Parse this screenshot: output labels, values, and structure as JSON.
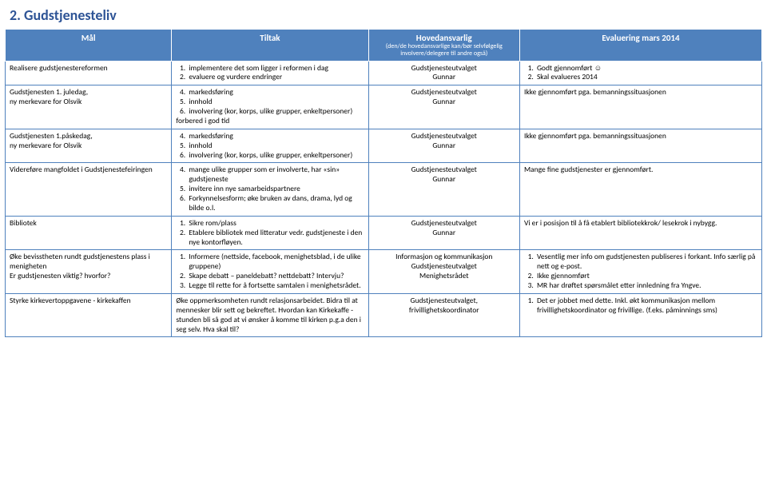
{
  "heading": "2. Gudstjenesteliv",
  "columns": {
    "mal": "Mål",
    "tiltak": "Tiltak",
    "hoved": "Hovedansvarlig",
    "hoved_sub": "(den/de hovedansvarlige kan/bør selvfølgelig involvere/delegere til andre også)",
    "eval": "Evaluering mars 2014"
  },
  "rows": [
    {
      "mal": "Realisere gudstjenestereformen",
      "tiltak_items": [
        "implementere det som ligger i reformen i dag",
        "evaluere og vurdere endringer"
      ],
      "hoved": "Gudstjenesteutvalget\nGunnar",
      "eval_items": [
        "Godt gjennomført ☺",
        "Skal evalueres 2014"
      ]
    },
    {
      "mal": "Gudstjenesten 1. juledag,\nny merkevare for Olsvik",
      "tiltak_items": [
        "markedsføring",
        "innhold",
        "involvering (kor, korps, ulike grupper, enkeltpersoner)"
      ],
      "tiltak_start": 4,
      "tiltak_after": "forbered i god tid",
      "hoved": "Gudstjenesteutvalget\nGunnar",
      "eval_plain": "Ikke gjennomført pga. bemanningssituasjonen"
    },
    {
      "mal": "Gudstjenesten 1.påskedag,\nny merkevare for Olsvik",
      "tiltak_items": [
        "markedsføring",
        "innhold",
        "involvering (kor, korps, ulike grupper, enkeltpersoner)"
      ],
      "tiltak_start": 4,
      "hoved": "Gudstjenesteutvalget\nGunnar",
      "eval_plain": "Ikke gjennomført pga. bemanningssituasjonen"
    },
    {
      "mal": "Videreføre mangfoldet i Gudstjenestefeiringen",
      "tiltak_items": [
        "mange ulike grupper som er involverte, har «sin» gudstjeneste",
        "invitere inn nye samarbeidspartnere",
        "Forkynnelsesform; øke bruken av dans, drama, lyd og bilde o.l."
      ],
      "tiltak_start": 4,
      "hoved": "Gudstjenesteutvalget\nGunnar",
      "eval_plain": "Mange fine gudstjenester er gjennomført."
    },
    {
      "mal": "Bibliotek",
      "tiltak_items": [
        "Sikre rom/plass",
        "Etablere bibliotek med litteratur vedr. gudstjeneste i den nye kontorfløyen."
      ],
      "hoved": "Gudstjenesteutvalget\nGunnar",
      "eval_plain": "Vi er i posisjon til å få etablert bibliotekkrok/ lesekrok i nybygg."
    },
    {
      "mal": "Øke bevisstheten rundt gudstjenestens plass i menigheten\nEr gudstjenesten viktig?  hvorfor?",
      "tiltak_items": [
        "Informere (nettside, facebook, menighetsblad, i de ulike gruppene)",
        "Skape debatt – paneldebatt? nettdebatt? Intervju?",
        "Legge til rette for å fortsette samtalen i menighetsrådet."
      ],
      "hoved": "Informasjon og kommunikasjon\nGudstjenesteutvalget\nMenighetsrådet",
      "eval_items": [
        "Vesentlig mer info om gudstjenesten publiseres i forkant. Info særlig på nett og e-post.",
        "Ikke gjennomført",
        "MR har drøftet spørsmålet etter innledning fra Yngve."
      ]
    },
    {
      "mal": "Styrke kirkevertoppgavene - kirkekaffen",
      "tiltak_plain": "Øke oppmerksomheten rundt relasjonsarbeidet. Bidra til at mennesker blir sett og bekreftet. Hvordan kan Kirkekaffe - stunden bli så god at vi ønsker å komme til kirken p.g.a den i seg selv. Hva skal til?",
      "hoved": "Gudstjenesteutvalget,\nfrivillighetskoordinator",
      "eval_items": [
        "Det er jobbet med dette. Inkl. økt kommunikasjon mellom frivillighetskoordinator og frivillige. (f.eks. påminnings sms)"
      ]
    }
  ]
}
